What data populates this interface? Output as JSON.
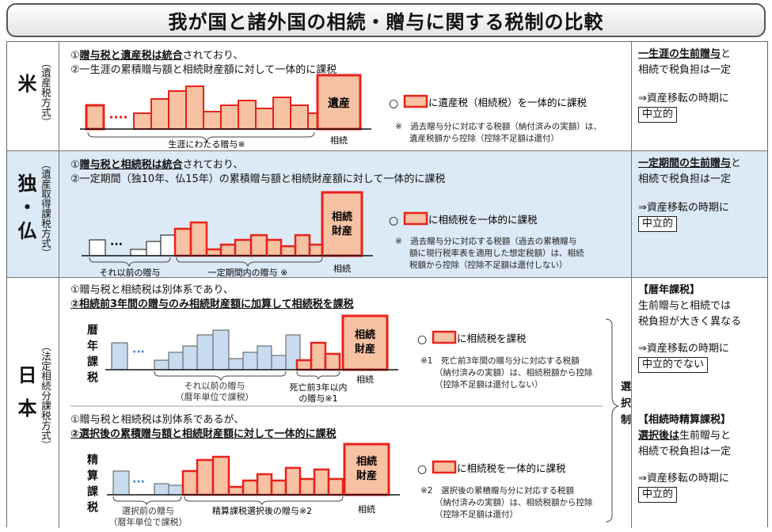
{
  "title": "我が国と諸外国の相続・贈与に関する税制の比較",
  "colors": {
    "red": "#e8221b",
    "salmon": "#f7c1a3",
    "blue": "#c9dcef",
    "white": "#ffffff"
  },
  "us": {
    "name": "米",
    "type": "（遺産税方式）",
    "line1_p1": "①",
    "line1_p2": "贈与税と遺産税は統合",
    "line1_p3": "されており、",
    "line2": "②一生涯の累積贈与額と相続財産額に対して一体的に課税",
    "estate_label": "遺産",
    "gift_label": "生涯にわたる贈与※",
    "inherit_label": "相続",
    "legend_prefix": "○",
    "legend_text": "に遺産税（相続税）を一体的に課税",
    "note1": "※　過去贈与分に対応する税額（納付済みの実額）は、",
    "note2": "遺産税額から控除（控除不足額は還付）",
    "right_u": "一生涯の生前贈与",
    "right_1": "と",
    "right_2": "相続で税負担は一定",
    "right_3": "⇒資産移転の時期に",
    "right_box": "中立的"
  },
  "de": {
    "name": "独・仏",
    "type": "（遺産取得課税方式）",
    "line1_p1": "①",
    "line1_p2": "贈与税と相続税は統合",
    "line1_p3": "されており、",
    "line2": "②一定期間（独10年、仏15年）の累積贈与額と相続財産額に対して一体的に課税",
    "estate_label_1": "相続",
    "estate_label_2": "財産",
    "prior_label": "それ以前の贈与",
    "period_label": "一定期間内の贈与 ※",
    "inherit_label": "相続",
    "legend_prefix": "○",
    "legend_text": "に相続税を一体的に課税",
    "note1": "※　過去贈与分に対応する税額（過去の累積贈与",
    "note2": "額に現行税率表を適用した想定税額）は、相続",
    "note3": "税額から控除（控除不足額は還付しない）",
    "right_u": "一定期間の生前贈与",
    "right_1": "と",
    "right_2": "相続で税負担は一定",
    "right_3": "⇒資産移転の時期に",
    "right_box": "中立的"
  },
  "jp": {
    "name": "日本",
    "type": "（法定相続分課税方式）",
    "line1": "①贈与税と相続税は別体系であり、",
    "line2": "②相続前3年間の贈与のみ相続財産額に加算して相続税を課税",
    "calendar_label": "暦年課税",
    "estate_label_1": "相続",
    "estate_label_2": "財産",
    "prior_label_1": "それ以前の贈与",
    "prior_label_2": "（暦年単位で課税）",
    "death_label_1": "死亡前3年以内",
    "death_label_2": "の贈与※1",
    "inherit_label": "相続",
    "legend_prefix": "○",
    "legend_text": "に相続税を課税",
    "note1": "※1　死亡前3年間の贈与分に対応する税額",
    "note2": "（納付済みの実額）は、相続税額から控除",
    "note3": "（控除不足額は還付しない）",
    "line3": "①贈与税と相続税は別体系であるが、",
    "line4": "②選択後の累積贈与額と相続財産額に対して一体的に課税",
    "settle_label": "精算課税",
    "estate2_label_1": "相続",
    "estate2_label_2": "財産",
    "pre_label_1": "選択前の贈与",
    "pre_label_2": "（暦年単位で課税）",
    "after_label": "精算課税選択後の贈与※2",
    "inherit2_label": "相続",
    "legend2_prefix": "○",
    "legend2_text": "に相続税を一体的に課税",
    "note4": "※2　選択後の累積贈与分に対応する税額",
    "note5": "（納付済みの実額）は、相続税額から控除",
    "note6": "（控除不足額は還付）",
    "select_label": "選択制",
    "r1_title": "【暦年課税】",
    "r1_1": "生前贈与と相続では",
    "r1_2": "税負担が大きく異なる",
    "r1_3": "⇒資産移転の時期に",
    "r1_box": "中立的でない",
    "r2_title": "【相続時精算課税】",
    "r2_u": "選択後は",
    "r2_1": "生前贈与と",
    "r2_2": "相続で税負担は一定",
    "r2_3": "⇒資産移転の時期に",
    "r2_box": "中立的"
  }
}
